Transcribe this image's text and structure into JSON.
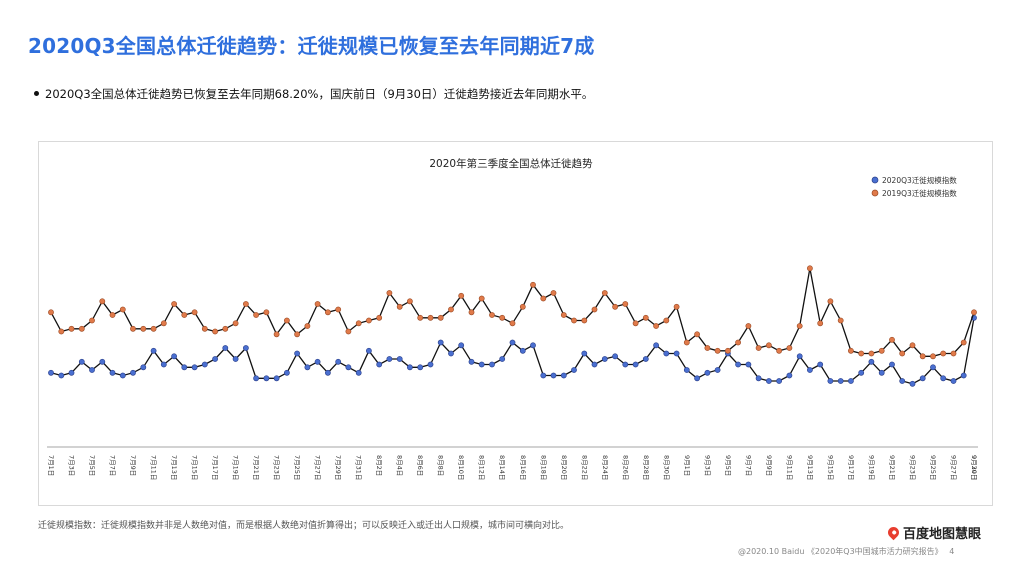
{
  "page": {
    "title": "2020Q3全国总体迁徙趋势：迁徙规模已恢复至去年同期近7成",
    "bullet": "2020Q3全国总体迁徙趋势已恢复至去年同期68.20%，国庆前日（9月30日）迁徙趋势接近去年同期水平。",
    "footnote": "迁徙规模指数：迁徙规模指数并非是人数绝对值，而是根据人数绝对值折算得出；可以反映迁入或迁出人口规模，城市间可横向对比。",
    "brand": "百度地图慧眼",
    "copyright": "@2020.10 Baidu 《2020年Q3中国城市活力研究报告》",
    "page_number": "4"
  },
  "colors": {
    "title": "#2f6fdd",
    "series_2020": "#4a6fd0",
    "series_2019": "#e07a4a",
    "line": "#111111"
  },
  "chart_data": {
    "type": "line",
    "title": "2020年第三季度全国总体迁徙趋势",
    "legend": [
      "2020Q3迁徙规模指数",
      "2019Q3迁徙规模指数"
    ],
    "legend_position": "top-right",
    "ylim": [
      0,
      100
    ],
    "grid": false,
    "x_tick_labels": [
      "7月1日",
      "7月3日",
      "7月5日",
      "7月7日",
      "7月9日",
      "7月11日",
      "7月13日",
      "7月15日",
      "7月17日",
      "7月19日",
      "7月21日",
      "7月23日",
      "7月25日",
      "7月27日",
      "7月29日",
      "7月31日",
      "8月2日",
      "8月4日",
      "8月6日",
      "8月8日",
      "8月10日",
      "8月12日",
      "8月14日",
      "8月16日",
      "8月18日",
      "8月20日",
      "8月22日",
      "8月24日",
      "8月26日",
      "8月28日",
      "8月30日",
      "9月1日",
      "9月3日",
      "9月5日",
      "9月7日",
      "9月9日",
      "9月11日",
      "9月13日",
      "9月15日",
      "9月17日",
      "9月19日",
      "9月21日",
      "9月23日",
      "9月25日",
      "9月27日",
      "9月29日",
      "9月30日"
    ],
    "series": [
      {
        "name": "2020Q3迁徙规模指数",
        "values": [
          27,
          26,
          27,
          31,
          28,
          31,
          27,
          26,
          27,
          29,
          35,
          30,
          33,
          29,
          29,
          30,
          32,
          36,
          32,
          36,
          25,
          25,
          25,
          27,
          34,
          29,
          31,
          27,
          31,
          29,
          27,
          35,
          30,
          32,
          32,
          29,
          29,
          30,
          38,
          34,
          37,
          31,
          30,
          30,
          32,
          38,
          35,
          37,
          26,
          26,
          26,
          28,
          34,
          30,
          32,
          33,
          30,
          30,
          32,
          37,
          34,
          34,
          28,
          25,
          27,
          28,
          34,
          30,
          30,
          25,
          24,
          24,
          26,
          33,
          28,
          30,
          24,
          24,
          24,
          27,
          31,
          27,
          30,
          24,
          23,
          25,
          29,
          25,
          24,
          26,
          47
        ]
      },
      {
        "name": "2019Q3迁徙规模指数",
        "values": [
          49,
          42,
          43,
          43,
          46,
          53,
          48,
          50,
          43,
          43,
          43,
          45,
          52,
          48,
          49,
          43,
          42,
          43,
          45,
          52,
          48,
          49,
          41,
          46,
          41,
          44,
          52,
          49,
          50,
          42,
          45,
          46,
          47,
          56,
          51,
          53,
          47,
          47,
          47,
          50,
          55,
          49,
          54,
          48,
          47,
          45,
          51,
          59,
          54,
          56,
          48,
          46,
          46,
          50,
          56,
          51,
          52,
          45,
          47,
          44,
          46,
          51,
          38,
          41,
          36,
          35,
          35,
          38,
          44,
          36,
          37,
          35,
          36,
          44,
          65,
          45,
          53,
          46,
          35,
          34,
          34,
          35,
          39,
          34,
          37,
          33,
          33,
          34,
          34,
          38,
          49
        ]
      }
    ]
  }
}
